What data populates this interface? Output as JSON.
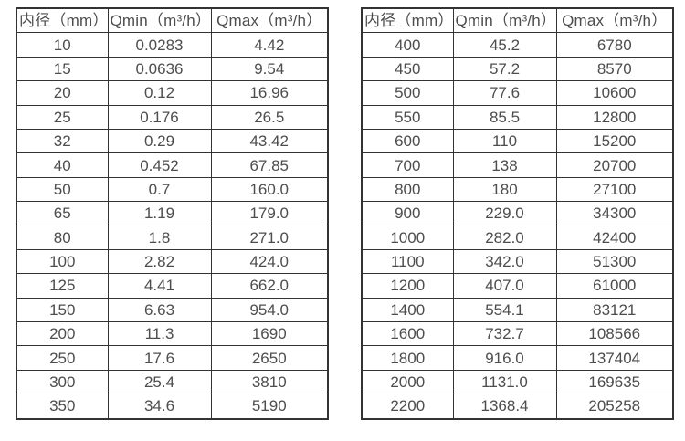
{
  "page": {
    "background": "#ffffff",
    "text_color": "#4d4d4d",
    "border_color": "#333333"
  },
  "tables": [
    {
      "name": "flow-table-left",
      "headers": [
        "内径（mm）",
        "Qmin（m³/h）",
        "Qmax（m³/h）"
      ],
      "rows": [
        [
          "10",
          "0.0283",
          "4.42"
        ],
        [
          "15",
          "0.0636",
          "9.54"
        ],
        [
          "20",
          "0.12",
          "16.96"
        ],
        [
          "25",
          "0.176",
          "26.5"
        ],
        [
          "32",
          "0.29",
          "43.42"
        ],
        [
          "40",
          "0.452",
          "67.85"
        ],
        [
          "50",
          "0.7",
          "160.0"
        ],
        [
          "65",
          "1.19",
          "179.0"
        ],
        [
          "80",
          "1.8",
          "271.0"
        ],
        [
          "100",
          "2.82",
          "424.0"
        ],
        [
          "125",
          "4.41",
          "662.0"
        ],
        [
          "150",
          "6.63",
          "954.0"
        ],
        [
          "200",
          "11.3",
          "1690"
        ],
        [
          "250",
          "17.6",
          "2650"
        ],
        [
          "300",
          "25.4",
          "3810"
        ],
        [
          "350",
          "34.6",
          "5190"
        ]
      ]
    },
    {
      "name": "flow-table-right",
      "headers": [
        "内径（mm）",
        "Qmin（m³/h）",
        "Qmax（m³/h）"
      ],
      "rows": [
        [
          "400",
          "45.2",
          "6780"
        ],
        [
          "450",
          "57.2",
          "8570"
        ],
        [
          "500",
          "77.6",
          "10600"
        ],
        [
          "550",
          "85.5",
          "12800"
        ],
        [
          "600",
          "110",
          "15200"
        ],
        [
          "700",
          "138",
          "20700"
        ],
        [
          "800",
          "180",
          "27100"
        ],
        [
          "900",
          "229.0",
          "34300"
        ],
        [
          "1000",
          "282.0",
          "42400"
        ],
        [
          "1100",
          "342.0",
          "51300"
        ],
        [
          "1200",
          "407.0",
          "61000"
        ],
        [
          "1400",
          "554.1",
          "83121"
        ],
        [
          "1600",
          "732.7",
          "108566"
        ],
        [
          "1800",
          "916.0",
          "137404"
        ],
        [
          "2000",
          "1131.0",
          "169635"
        ],
        [
          "2200",
          "1368.4",
          "205258"
        ]
      ]
    }
  ]
}
